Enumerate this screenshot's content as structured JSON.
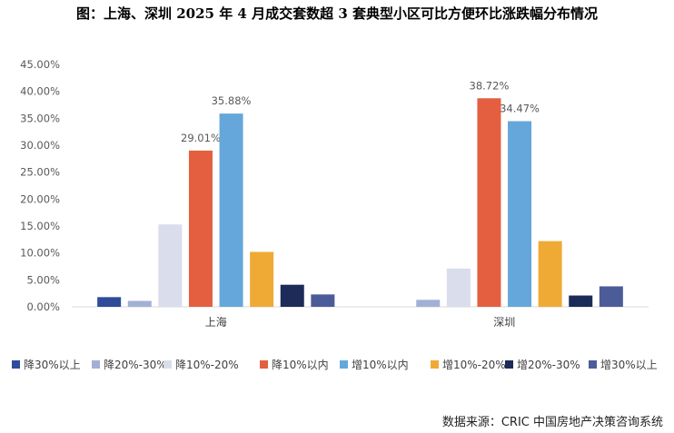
{
  "title": "图：上海、深圳 2025 年 4 月成交套数超 3 套典型小区可比方便环比涨跌幅分布情况",
  "source": "数据来源：CRIC 中国房地产决策咨询系统",
  "chart_data": {
    "type": "bar",
    "title": "图：上海、深圳 2025 年 4 月成交套数超 3 套典型小区可比方便环比涨跌幅分布情况",
    "xlabel": "",
    "ylabel": "",
    "categories": [
      "上海",
      "深圳"
    ],
    "ylim": [
      0,
      45
    ],
    "yticks": [
      "0.00%",
      "5.00%",
      "10.00%",
      "15.00%",
      "20.00%",
      "25.00%",
      "30.00%",
      "35.00%",
      "40.00%",
      "45.00%"
    ],
    "grid": false,
    "legend": "bottom",
    "series": [
      {
        "name": "降30%以上",
        "color": "#2F4B9A",
        "values": [
          1.8,
          0
        ]
      },
      {
        "name": "降20%-30%",
        "color": "#A3B0D6",
        "values": [
          1.1,
          1.3
        ]
      },
      {
        "name": "降10%-20%",
        "color": "#D9DDEC",
        "values": [
          15.3,
          7.1
        ]
      },
      {
        "name": "降10%以内",
        "color": "#E35F3F",
        "values": [
          29.01,
          38.72
        ],
        "labels": [
          "29.01%",
          "38.72%"
        ]
      },
      {
        "name": "增10%以内",
        "color": "#65A7DA",
        "values": [
          35.88,
          34.47
        ],
        "labels": [
          "35.88%",
          "34.47%"
        ]
      },
      {
        "name": "增10%-20%",
        "color": "#EFAA35",
        "values": [
          10.2,
          12.2
        ]
      },
      {
        "name": "增20%-30%",
        "color": "#1C2B57",
        "values": [
          4.1,
          2.1
        ]
      },
      {
        "name": "增30%以上",
        "color": "#4C5C99",
        "values": [
          2.3,
          3.8
        ]
      }
    ]
  }
}
